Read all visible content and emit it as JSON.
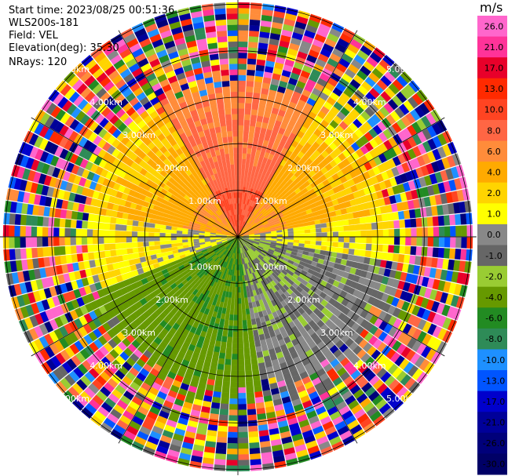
{
  "header": {
    "start_time": "Start time: 2023/08/25 00:51:36",
    "instrument": "WLS200s-181",
    "field": "Field: VEL",
    "elevation": "Elevation(deg): 35.30",
    "nrays": "NRays: 120"
  },
  "colorbar": {
    "unit": "m/s",
    "ticks": [
      "26.0",
      "21.0",
      "17.0",
      "13.0",
      "10.0",
      "8.0",
      "6.0",
      "4.0",
      "2.0",
      "1.0",
      "0.0",
      "-1.0",
      "-2.0",
      "-4.0",
      "-6.0",
      "-8.0",
      "-10.0",
      "-13.0",
      "-17.0",
      "-21.0",
      "-26.0",
      "-30.0"
    ],
    "colors": [
      "#ff66cc",
      "#ff3399",
      "#e8002a",
      "#ff2a00",
      "#ff4422",
      "#ff6644",
      "#ff8c3a",
      "#ffaa00",
      "#ffd400",
      "#ffff00",
      "#888888",
      "#666666",
      "#99cc33",
      "#669900",
      "#228b22",
      "#2e8b57",
      "#1e90ff",
      "#0055ff",
      "#0000cc",
      "#000099",
      "#00007a",
      "#000066"
    ]
  },
  "chart_data": {
    "type": "ppi",
    "field": "VEL",
    "units": "m/s",
    "nrays": 120,
    "elevation_deg": 35.3,
    "range_ring_labels": [
      "1.00km",
      "2.00km",
      "3.00km",
      "4.00km",
      "5.00km"
    ],
    "rings_km": [
      1,
      2,
      3,
      4,
      5
    ],
    "max_range_km": 5.0,
    "sectors": [
      {
        "azimuth_range_deg": [
          330,
          30
        ],
        "near_value": 8.0,
        "note": "north"
      },
      {
        "azimuth_range_deg": [
          30,
          80
        ],
        "near_value": 4.0
      },
      {
        "azimuth_range_deg": [
          80,
          100
        ],
        "near_value": 0.0
      },
      {
        "azimuth_range_deg": [
          100,
          170
        ],
        "near_value": -2.0
      },
      {
        "azimuth_range_deg": [
          170,
          250
        ],
        "near_value": -6.0
      },
      {
        "azimuth_range_deg": [
          250,
          280
        ],
        "near_value": 0.0
      },
      {
        "azimuth_range_deg": [
          280,
          330
        ],
        "near_value": 4.0
      }
    ],
    "noise_beyond_km": 3.8
  }
}
